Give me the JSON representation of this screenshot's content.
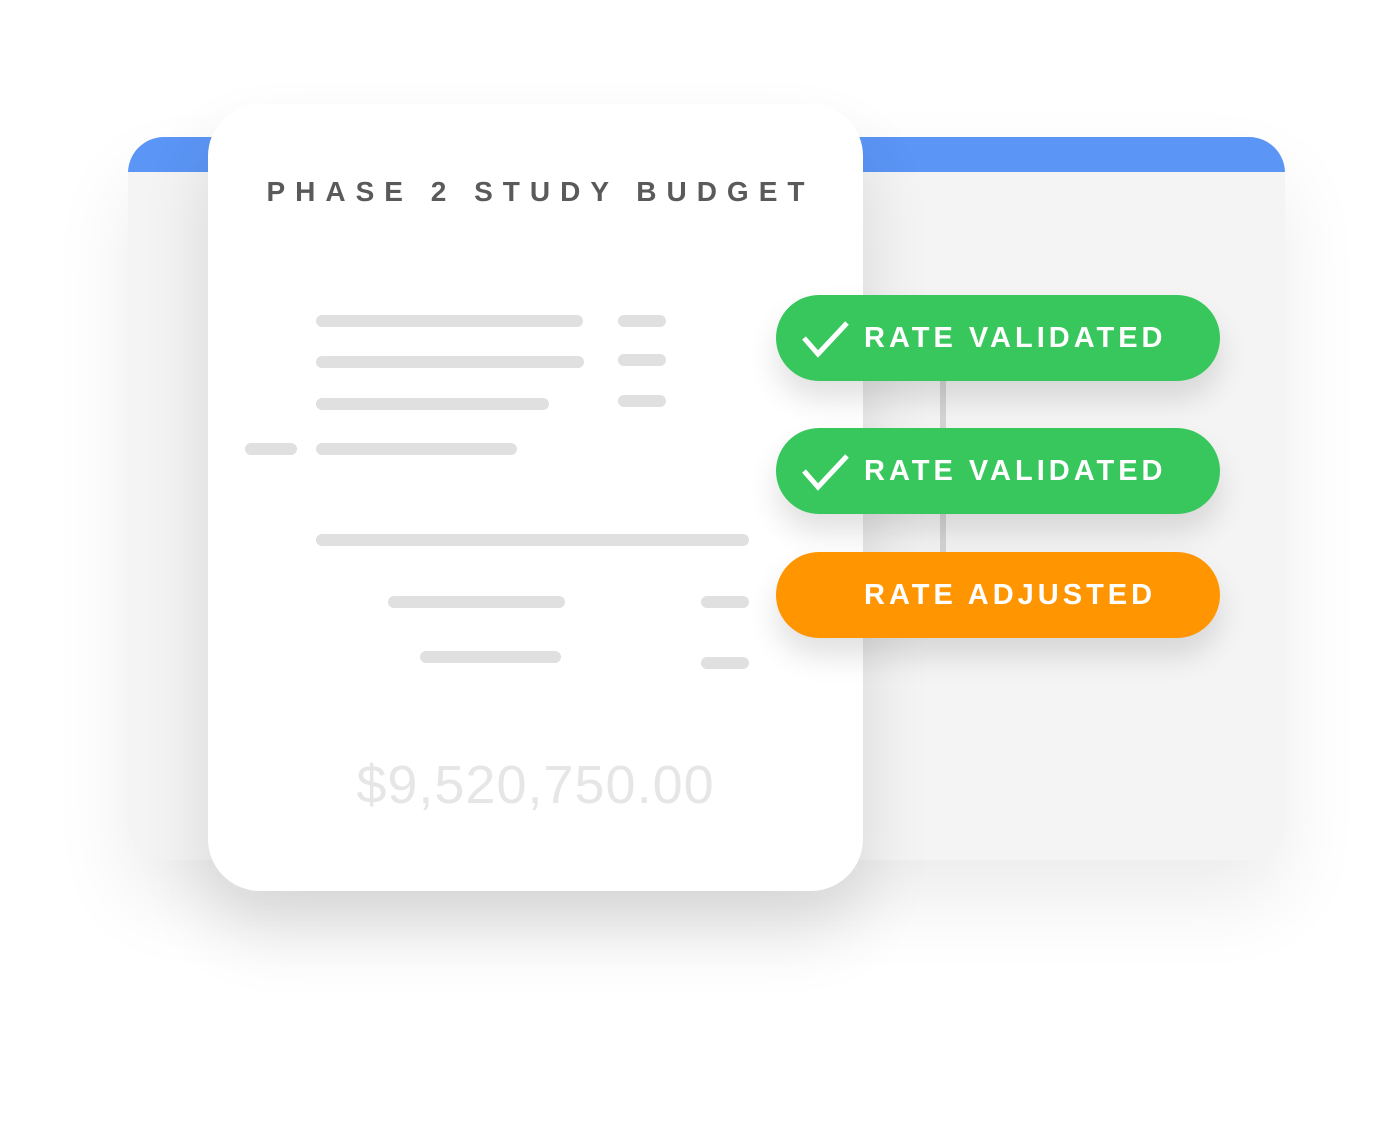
{
  "card": {
    "title": "PHASE 2 STUDY BUDGET",
    "total": "$9,520,750.00"
  },
  "badges": [
    {
      "label": "RATE VALIDATED",
      "icon": "check-icon",
      "color": "#37c75c"
    },
    {
      "label": "RATE VALIDATED",
      "icon": "check-icon",
      "color": "#37c75c"
    },
    {
      "label": "RATE ADJUSTED",
      "icon": "",
      "color": "#ff9500"
    }
  ],
  "colors": {
    "header_bar": "#5b95f5",
    "placeholder": "#e0e0e0"
  }
}
